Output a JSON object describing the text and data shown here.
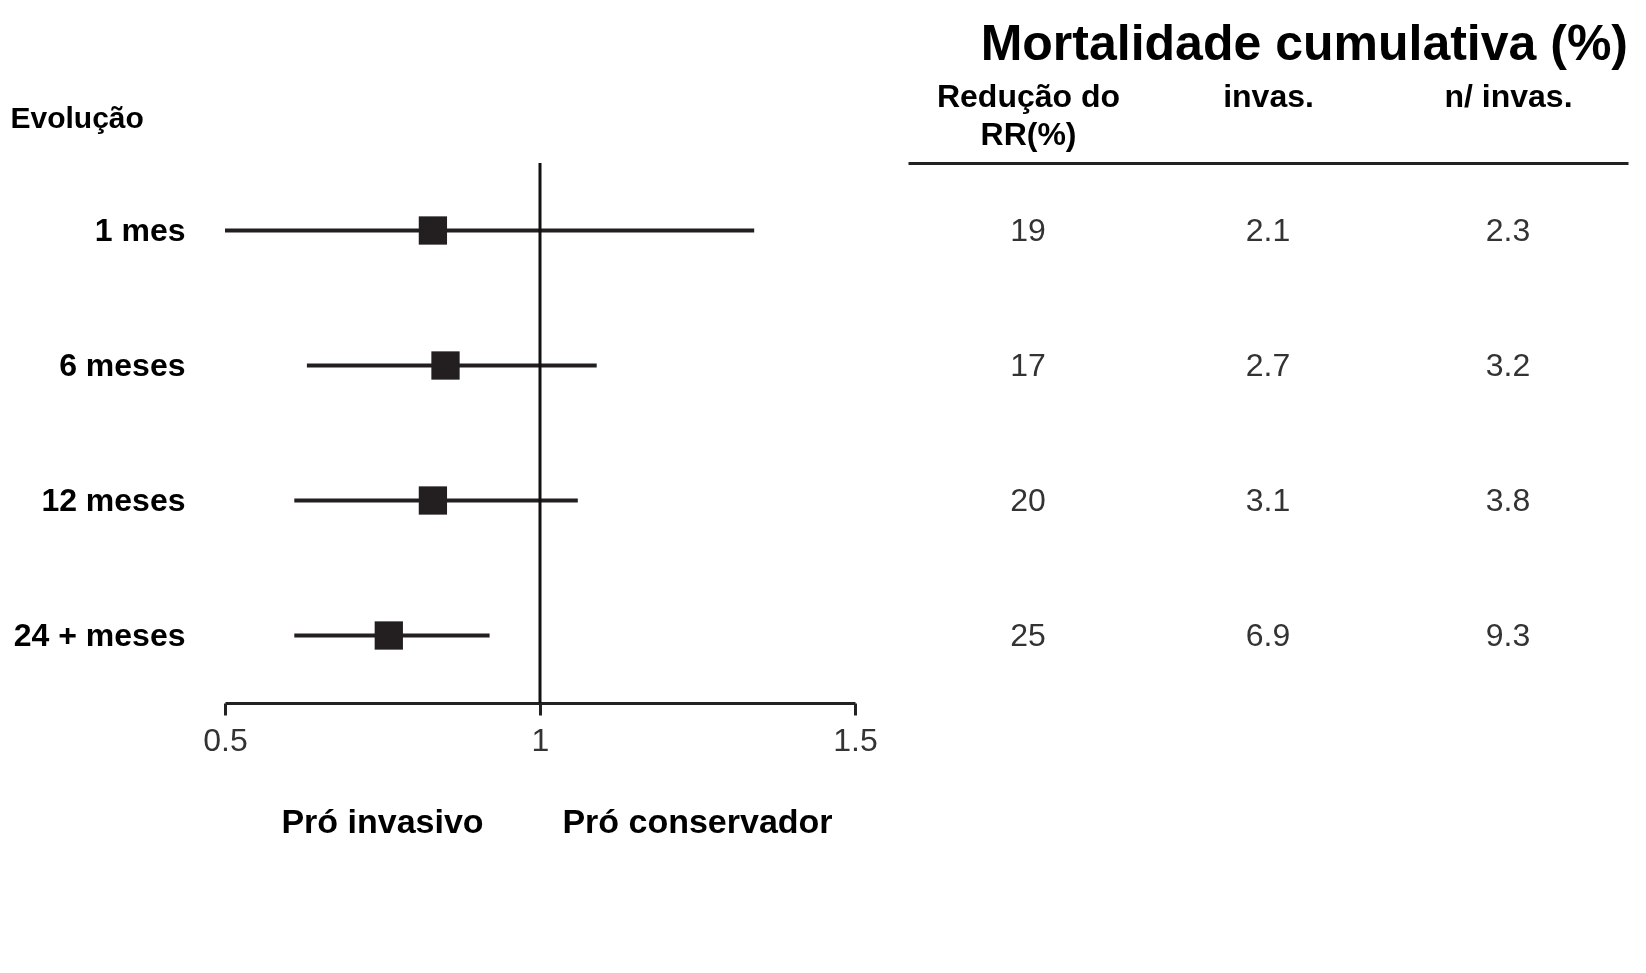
{
  "chart_data": [
    {
      "type": "scatter",
      "orientation": "horizontal",
      "ylabel": "Evolução",
      "categories": [
        "1 mes",
        "6 meses",
        "12 meses",
        "24 + meses"
      ],
      "series": [
        {
          "color": "#231f20",
          "values": [
            0.83,
            0.85,
            0.83,
            0.76
          ],
          "errors": [
            [
              0.5,
              1.34
            ],
            [
              0.63,
              1.09
            ],
            [
              0.61,
              1.06
            ],
            [
              0.61,
              0.92
            ]
          ]
        }
      ],
      "xlim": [
        0.5,
        1.5
      ],
      "xticks": [
        0.5,
        1,
        1.5
      ],
      "marker": "square",
      "grid": false,
      "ref_lines": [
        {
          "axis": "x",
          "value": 1
        }
      ],
      "annotations": [
        "Pró invasivo",
        "Pró conservador"
      ]
    },
    {
      "type": "other",
      "title": "Mortalidade cumulativa (%)",
      "categories": [
        "Redução do RR(%)",
        "invas.",
        "n/ invas."
      ],
      "cell_labels": [
        [
          "19",
          "2.1",
          "2.3"
        ],
        [
          "17",
          "2.7",
          "3.2"
        ],
        [
          "20",
          "3.1",
          "3.8"
        ],
        [
          "25",
          "6.9",
          "9.3"
        ]
      ]
    }
  ]
}
